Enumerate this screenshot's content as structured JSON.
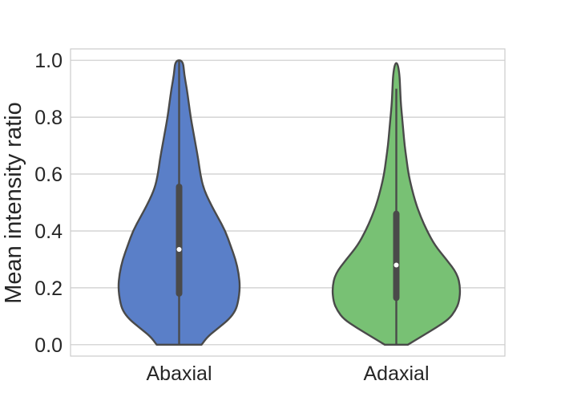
{
  "chart_data": {
    "type": "violin",
    "ylabel": "Mean intensity ratio",
    "xlabel": "",
    "ylim": [
      -0.04,
      1.04
    ],
    "yticks": [
      0.0,
      0.2,
      0.4,
      0.6,
      0.8,
      1.0
    ],
    "ytick_labels": [
      "0.0",
      "0.2",
      "0.4",
      "0.6",
      "0.8",
      "1.0"
    ],
    "grid": true,
    "categories": [
      "Abaxial",
      "Adaxial"
    ],
    "series": [
      {
        "category": "Abaxial",
        "color": "#5a7fc8",
        "whisker": [
          0.0,
          1.0
        ],
        "q1": 0.18,
        "median": 0.335,
        "q3": 0.555,
        "density": [
          [
            0.0,
            0.35
          ],
          [
            0.03,
            0.45
          ],
          [
            0.06,
            0.62
          ],
          [
            0.09,
            0.78
          ],
          [
            0.12,
            0.88
          ],
          [
            0.15,
            0.92
          ],
          [
            0.2,
            0.95
          ],
          [
            0.25,
            0.93
          ],
          [
            0.3,
            0.88
          ],
          [
            0.35,
            0.8
          ],
          [
            0.4,
            0.72
          ],
          [
            0.45,
            0.6
          ],
          [
            0.5,
            0.48
          ],
          [
            0.55,
            0.38
          ],
          [
            0.6,
            0.33
          ],
          [
            0.65,
            0.3
          ],
          [
            0.7,
            0.26
          ],
          [
            0.75,
            0.22
          ],
          [
            0.8,
            0.18
          ],
          [
            0.85,
            0.15
          ],
          [
            0.9,
            0.12
          ],
          [
            0.95,
            0.08
          ],
          [
            1.0,
            0.06
          ]
        ]
      },
      {
        "category": "Adaxial",
        "color": "#78c174",
        "whisker": [
          0.0,
          0.9
        ],
        "q1": 0.165,
        "median": 0.28,
        "q3": 0.46,
        "density": [
          [
            0.0,
            0.18
          ],
          [
            0.03,
            0.4
          ],
          [
            0.06,
            0.62
          ],
          [
            0.09,
            0.82
          ],
          [
            0.12,
            0.92
          ],
          [
            0.15,
            0.98
          ],
          [
            0.2,
            1.0
          ],
          [
            0.25,
            0.95
          ],
          [
            0.3,
            0.78
          ],
          [
            0.35,
            0.6
          ],
          [
            0.4,
            0.48
          ],
          [
            0.45,
            0.38
          ],
          [
            0.5,
            0.3
          ],
          [
            0.55,
            0.24
          ],
          [
            0.6,
            0.19
          ],
          [
            0.65,
            0.16
          ],
          [
            0.7,
            0.13
          ],
          [
            0.75,
            0.11
          ],
          [
            0.8,
            0.09
          ],
          [
            0.85,
            0.07
          ],
          [
            0.9,
            0.06
          ],
          [
            0.95,
            0.05
          ],
          [
            0.99,
            0.02
          ]
        ]
      }
    ]
  }
}
